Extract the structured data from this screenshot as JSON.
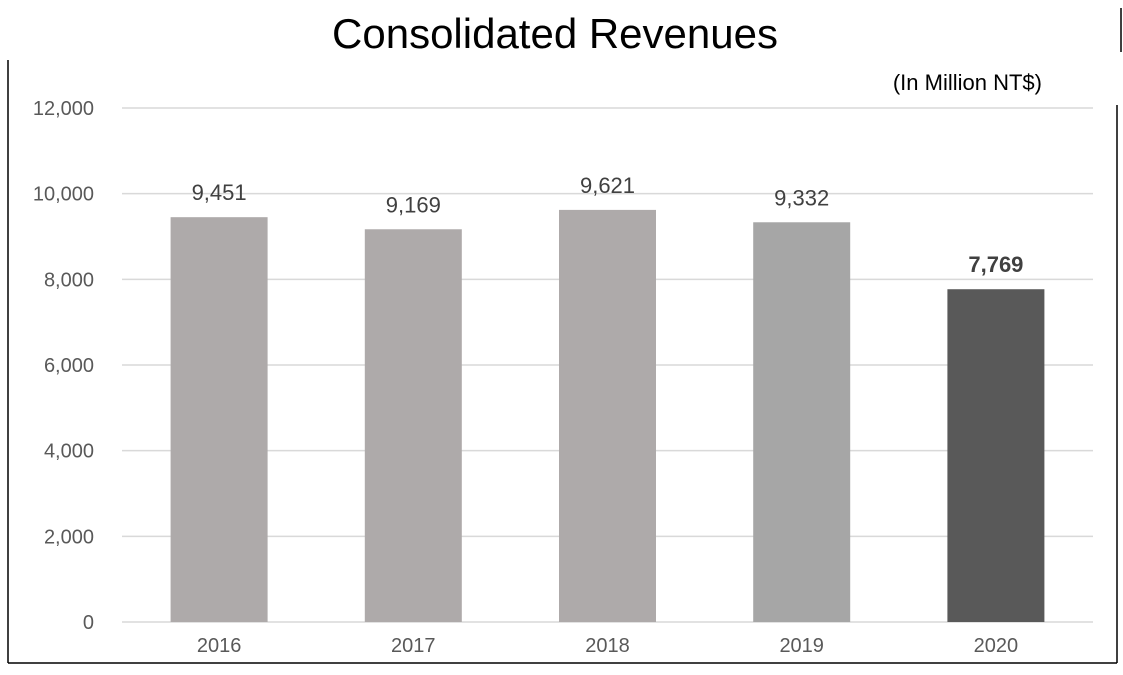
{
  "chart_data": {
    "type": "bar",
    "title": "Consolidated Revenues",
    "subtitle": "(In Million NT$)",
    "categories": [
      "2016",
      "2017",
      "2018",
      "2019",
      "2020"
    ],
    "values": [
      9451,
      9169,
      9621,
      9332,
      7769
    ],
    "data_labels": [
      "9,451",
      "9,169",
      "9,621",
      "9,332",
      "7,769"
    ],
    "bold_labels": [
      false,
      false,
      false,
      false,
      true
    ],
    "bar_colors": [
      "#aeaaaa",
      "#aeaaaa",
      "#aeaaaa",
      "#a6a6a6",
      "#595959"
    ],
    "ylim": [
      0,
      12000
    ],
    "yticks": [
      0,
      2000,
      4000,
      6000,
      8000,
      10000,
      12000
    ],
    "ytick_labels": [
      "0",
      "2,000",
      "4,000",
      "6,000",
      "8,000",
      "10,000",
      "12,000"
    ],
    "grid": true,
    "gridline_color": "#d9d9d9",
    "legend": "none"
  }
}
